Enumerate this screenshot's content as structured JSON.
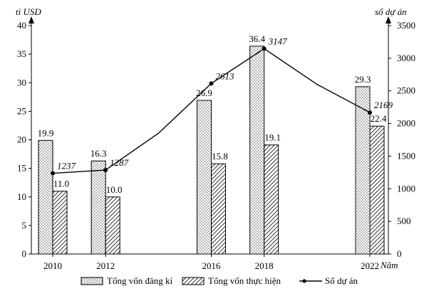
{
  "chart_data": {
    "type": "bar",
    "categories": [
      "2010",
      "2012",
      "2016",
      "2018",
      "2022"
    ],
    "x": [
      2010,
      2012,
      2014,
      2016,
      2018,
      2020,
      2022
    ],
    "series": [
      {
        "name": "Tổng vốn đăng kí",
        "kind": "bar",
        "axis": "left",
        "x": [
          2010,
          2012,
          2016,
          2018,
          2022
        ],
        "values": [
          19.9,
          16.3,
          26.9,
          36.4,
          29.3
        ],
        "pattern": "dots"
      },
      {
        "name": "Tổng vốn thực hiện",
        "kind": "bar",
        "axis": "left",
        "x": [
          2010,
          2012,
          2016,
          2018,
          2022
        ],
        "values": [
          11.0,
          10.0,
          15.8,
          19.1,
          22.4
        ],
        "pattern": "hatch"
      },
      {
        "name": "Số dự án",
        "kind": "line",
        "axis": "right",
        "x": [
          2010,
          2012,
          2014,
          2016,
          2018,
          2020,
          2022
        ],
        "values": [
          1237,
          1287,
          1850,
          2613,
          3147,
          2600,
          2169
        ],
        "labeled": [
          true,
          true,
          false,
          true,
          true,
          false,
          true
        ]
      }
    ],
    "yaxis_left": {
      "label": "tỉ USD",
      "min": 0,
      "max": 40,
      "step": 5
    },
    "yaxis_right": {
      "label": "số dự án",
      "min": 0,
      "max": 3500,
      "step": 500
    },
    "xlabel": "Năm",
    "grid": false,
    "legend_position": "bottom"
  }
}
